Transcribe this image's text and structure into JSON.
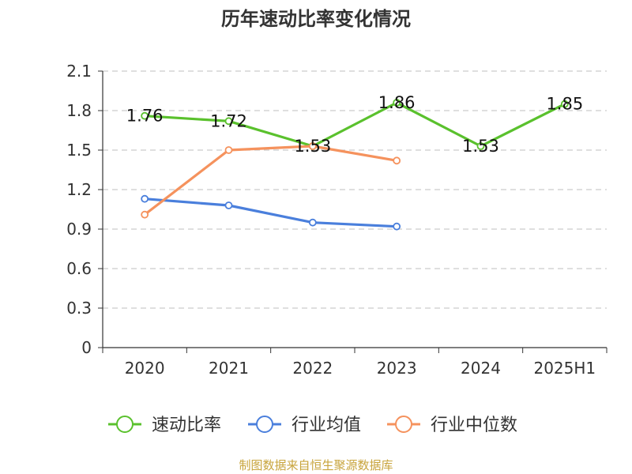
{
  "chart_data": {
    "type": "line",
    "title": "历年速动比率变化情况",
    "categories": [
      "2020",
      "2021",
      "2022",
      "2023",
      "2024",
      "2025H1"
    ],
    "ylim": [
      0,
      2.1
    ],
    "yticks": [
      "0",
      "0.3",
      "0.6",
      "0.9",
      "1.2",
      "1.5",
      "1.8",
      "2.1"
    ],
    "grid": true,
    "legend_position": "bottom",
    "series": [
      {
        "name": "速动比率",
        "color": "#5ac12d",
        "values": [
          1.76,
          1.72,
          1.53,
          1.86,
          1.53,
          1.85
        ],
        "labels": [
          "1.76",
          "1.72",
          "1.53",
          "1.86",
          "1.53",
          "1.85"
        ]
      },
      {
        "name": "行业均值",
        "color": "#4a7fdc",
        "values": [
          1.13,
          1.08,
          0.95,
          0.92,
          null,
          null
        ]
      },
      {
        "name": "行业中位数",
        "color": "#f5925d",
        "values": [
          1.01,
          1.5,
          1.53,
          1.42,
          null,
          null
        ]
      }
    ]
  },
  "source_text": "制图数据来自恒生聚源数据库"
}
